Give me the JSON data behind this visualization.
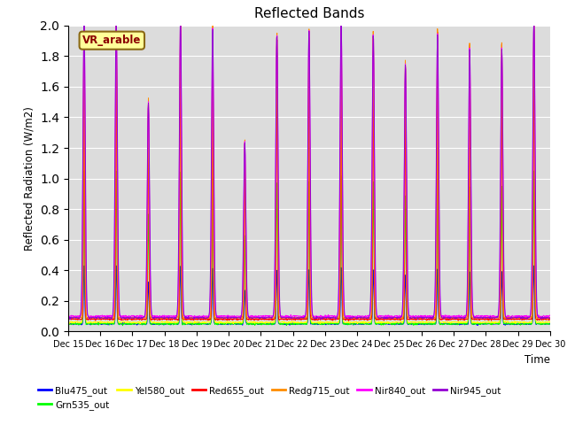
{
  "title": "Reflected Bands",
  "ylabel": "Reflected Radiation (W/m2)",
  "xlabel": "Time",
  "annotation_text": "VR_arable",
  "annotation_color": "#8B0000",
  "annotation_bg": "#FFFF99",
  "annotation_border": "#8B6914",
  "bg_color": "#DCDCDC",
  "ylim": [
    0.0,
    2.0
  ],
  "series": [
    {
      "label": "Blu475_out",
      "color": "#0000FF"
    },
    {
      "label": "Grn535_out",
      "color": "#00FF00"
    },
    {
      "label": "Yel580_out",
      "color": "#FFFF00"
    },
    {
      "label": "Red655_out",
      "color": "#FF0000"
    },
    {
      "label": "Redg715_out",
      "color": "#FF8C00"
    },
    {
      "label": "Nir840_out",
      "color": "#FF00FF"
    },
    {
      "label": "Nir945_out",
      "color": "#9400D3"
    }
  ],
  "num_days": 15,
  "start_day": 15,
  "points_per_day": 96,
  "yticks": [
    0.0,
    0.2,
    0.4,
    0.6,
    0.8,
    1.0,
    1.2,
    1.4,
    1.6,
    1.8,
    2.0
  ],
  "legend_ncol": 6
}
